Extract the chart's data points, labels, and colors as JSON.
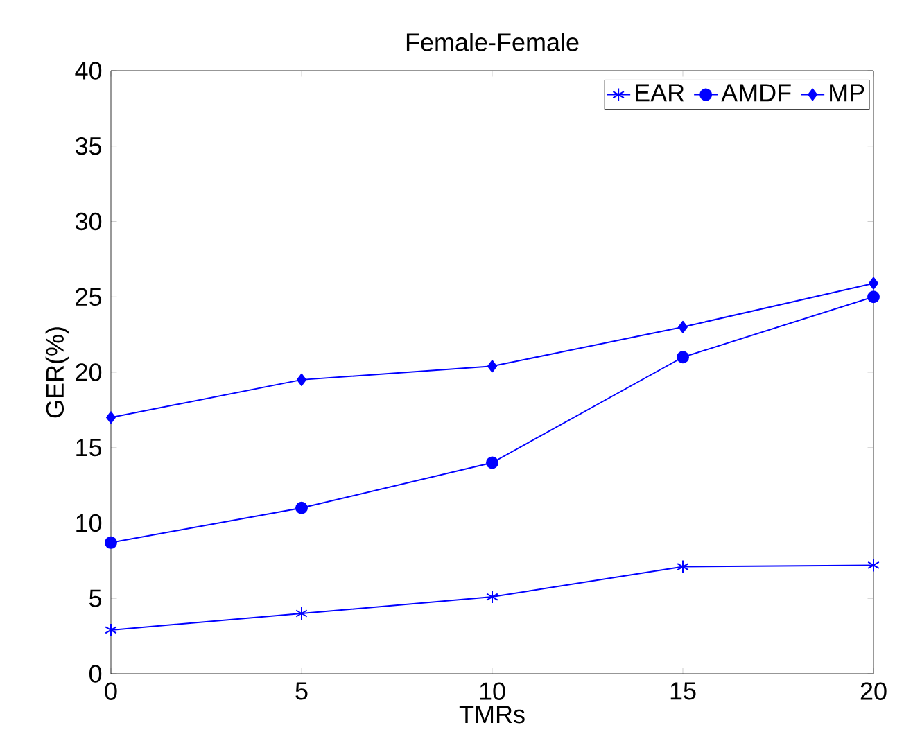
{
  "chart_data": {
    "type": "line",
    "title": "Female-Female",
    "xlabel": "TMRs",
    "ylabel": "GER(%)",
    "x": [
      0,
      5,
      10,
      15,
      20
    ],
    "series": [
      {
        "name": "EAR",
        "color": "#0000ff",
        "marker": "cross",
        "values": [
          2.9,
          4.0,
          5.1,
          7.1,
          7.2
        ]
      },
      {
        "name": "AMDF",
        "color": "#0000ff",
        "marker": "circle",
        "values": [
          8.7,
          11.0,
          14.0,
          21.0,
          25.0
        ]
      },
      {
        "name": "MP",
        "color": "#0000ff",
        "marker": "diamond",
        "values": [
          17.0,
          19.5,
          20.4,
          23.0,
          25.9
        ]
      }
    ],
    "xlim": [
      0,
      20
    ],
    "xticks": [
      0,
      5,
      10,
      15,
      20
    ],
    "ylim": [
      0,
      40
    ],
    "yticks": [
      0,
      5,
      10,
      15,
      20,
      25,
      30,
      35,
      40
    ],
    "grid": false,
    "legend": "top right",
    "line_style": "solid"
  }
}
